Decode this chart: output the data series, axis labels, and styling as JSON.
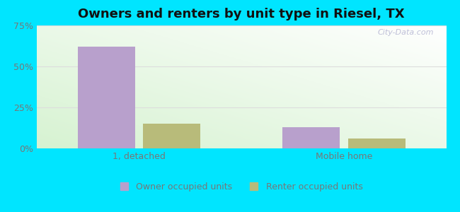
{
  "title": "Owners and renters by unit type in Riesel, TX",
  "categories": [
    "1, detached",
    "Mobile home"
  ],
  "owner_values": [
    62,
    13
  ],
  "renter_values": [
    15,
    6
  ],
  "owner_color": "#b8a0cc",
  "renter_color": "#b8bb7a",
  "ylim": [
    0,
    75
  ],
  "yticks": [
    0,
    25,
    50,
    75
  ],
  "ytick_labels": [
    "0%",
    "25%",
    "50%",
    "75%"
  ],
  "outer_background": "#00e5ff",
  "bar_width": 0.28,
  "title_fontsize": 13,
  "legend_labels": [
    "Owner occupied units",
    "Renter occupied units"
  ],
  "watermark": "City-Data.com",
  "grid_color": "#dddddd",
  "tick_color": "#777777"
}
